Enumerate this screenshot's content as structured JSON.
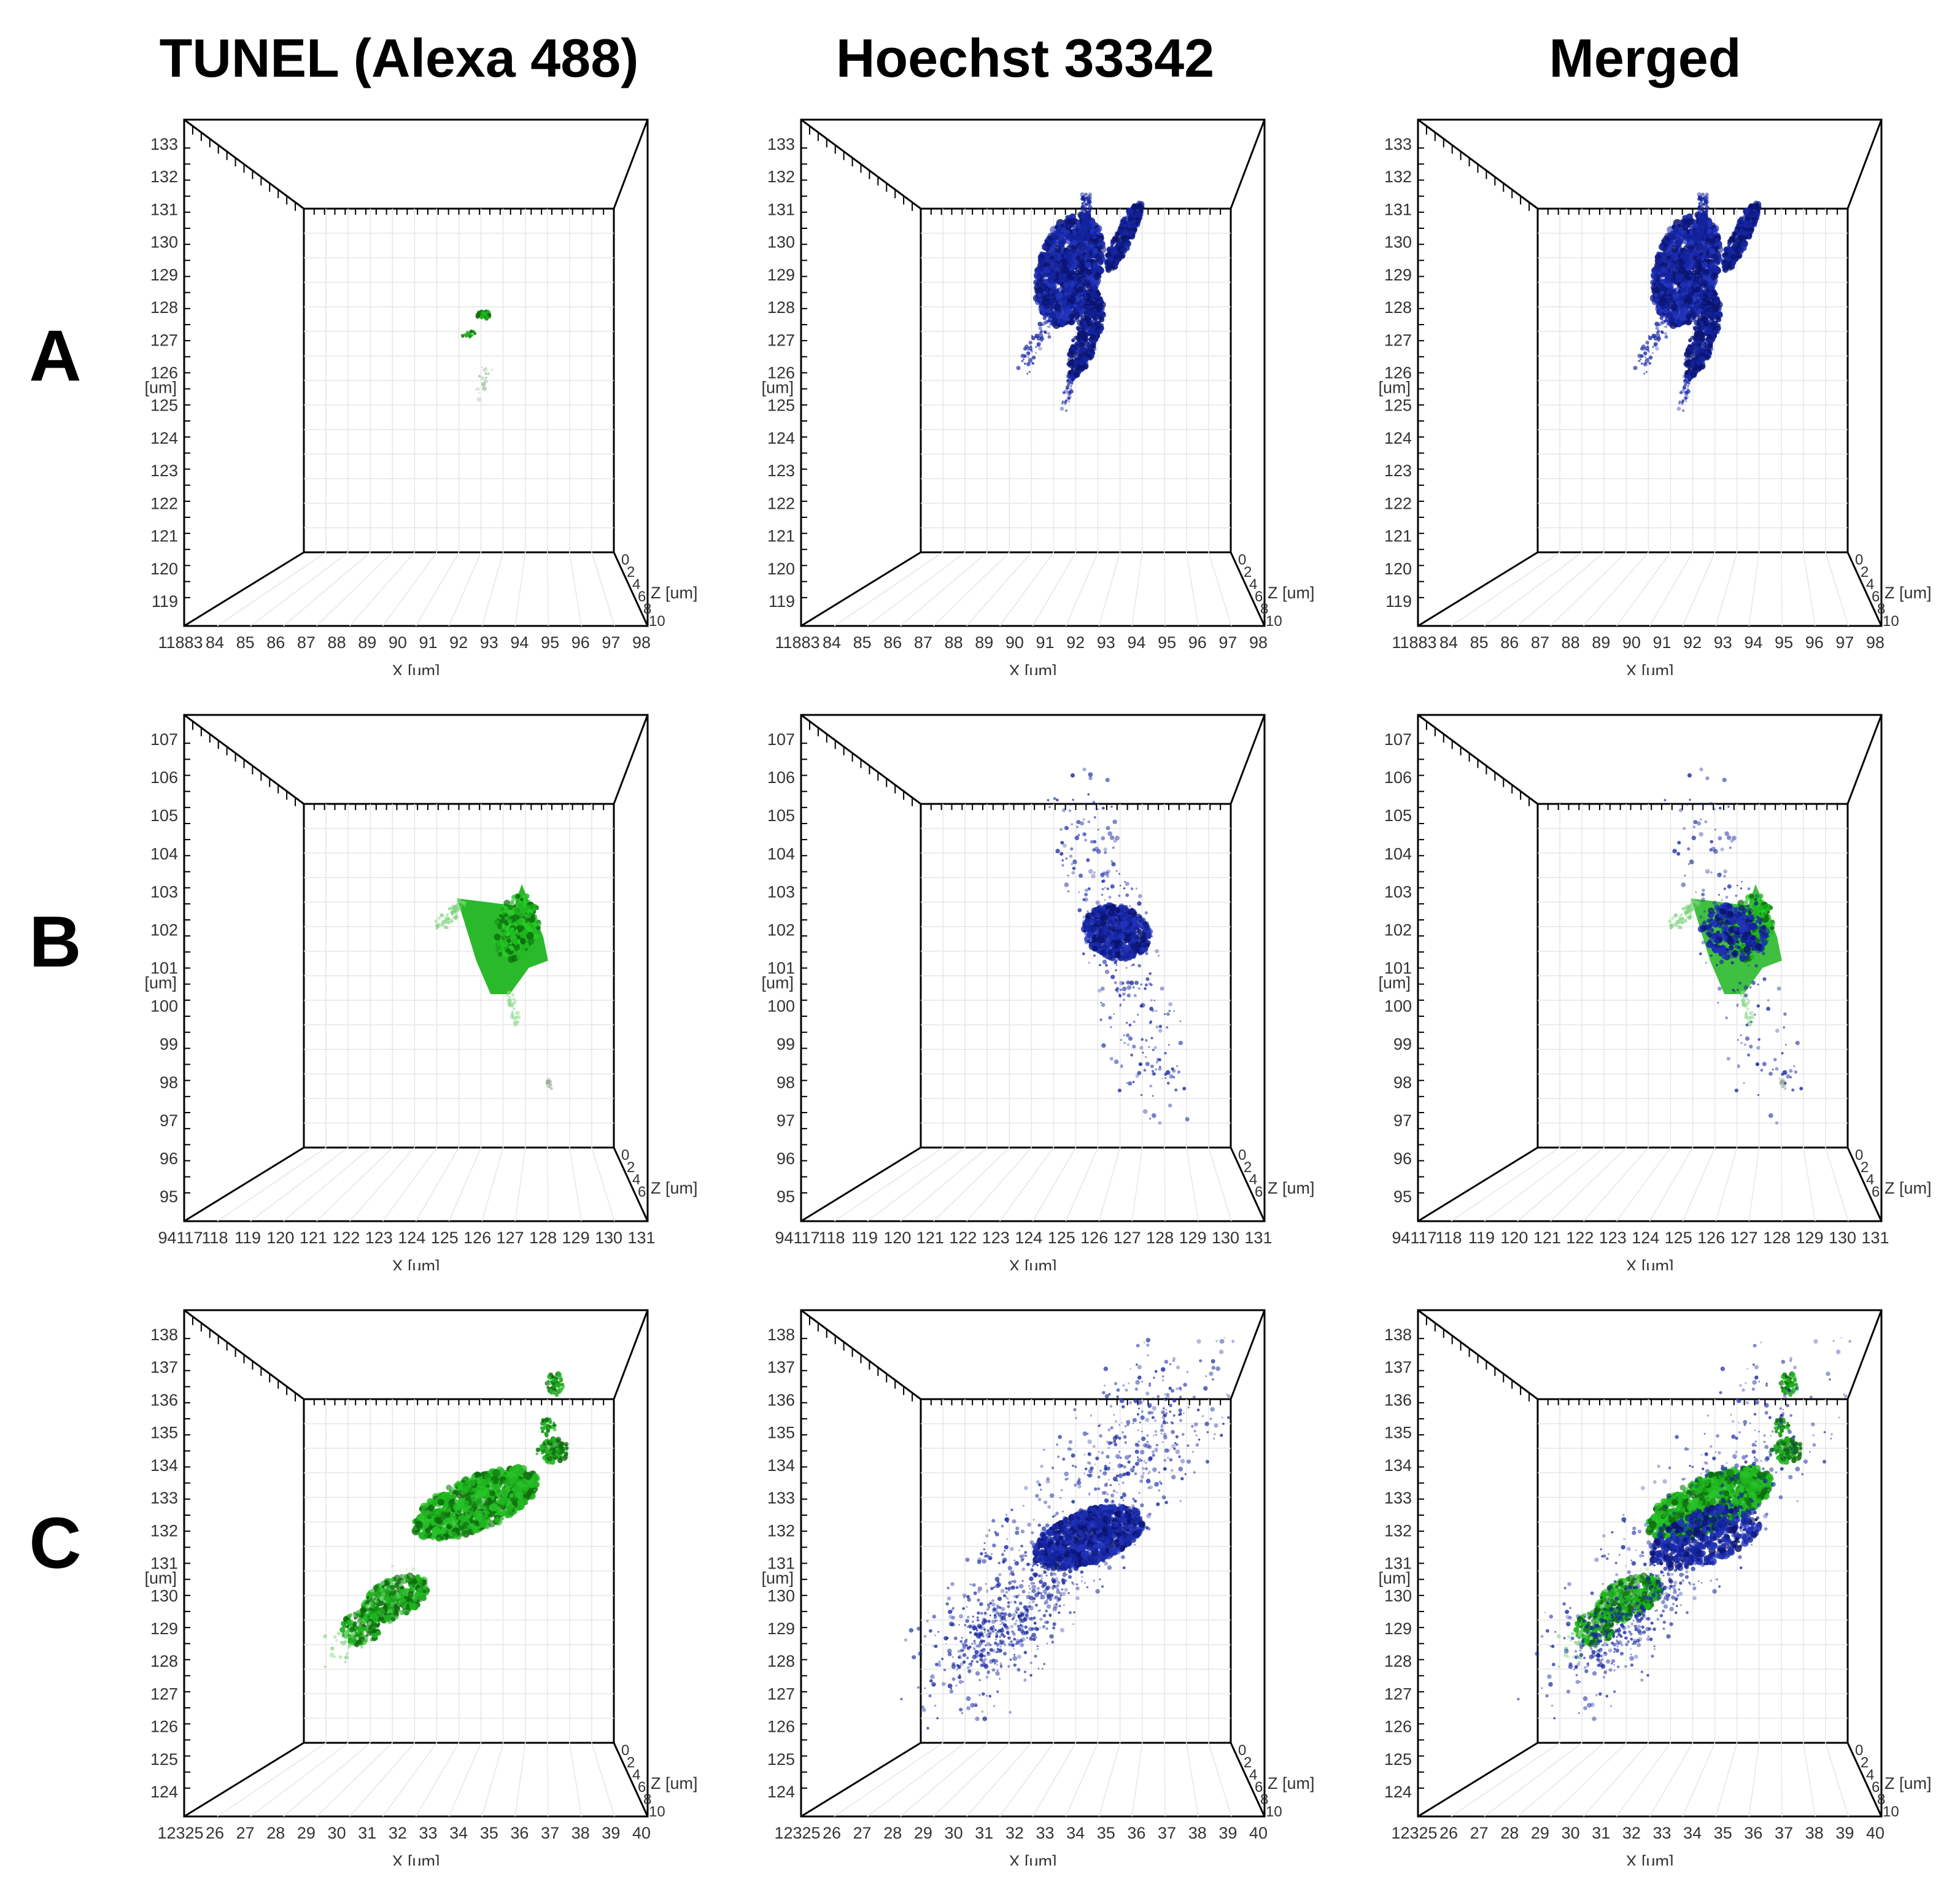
{
  "column_headers": [
    "TUNEL (Alexa 488)",
    "Hoechst 33342",
    "Merged"
  ],
  "row_labels": [
    "A",
    "B",
    "C"
  ],
  "axis_titles": {
    "x": "X [um]",
    "y": "Y [um]",
    "z": "Z [um]"
  },
  "colors": {
    "tunel_green": "#1fb51f",
    "tunel_dark": "#0e6e0e",
    "hoechst_blue": "#1424a0",
    "hoechst_dark": "#0a1470"
  },
  "icons": [
    "fluorescence-cell-render"
  ],
  "rows": [
    {
      "label": "A",
      "y_ticks": [
        "119",
        "120",
        "121",
        "122",
        "123",
        "124",
        "125",
        "126",
        "127",
        "128",
        "129",
        "130",
        "131",
        "132",
        "133"
      ],
      "x_ticks": [
        "84",
        "85",
        "86",
        "87",
        "88",
        "89",
        "90",
        "91",
        "92",
        "93",
        "94",
        "95",
        "96",
        "97",
        "98"
      ],
      "origin_label": "11883",
      "z_ticks": [
        "0",
        "2",
        "4",
        "6",
        "8",
        "10"
      ]
    },
    {
      "label": "B",
      "y_ticks": [
        "95",
        "96",
        "97",
        "98",
        "99",
        "100",
        "101",
        "102",
        "103",
        "104",
        "105",
        "106",
        "107"
      ],
      "x_ticks": [
        "118",
        "119",
        "120",
        "121",
        "122",
        "123",
        "124",
        "125",
        "126",
        "127",
        "128",
        "129",
        "130",
        "131"
      ],
      "origin_label": "94117",
      "z_ticks": [
        "0",
        "2",
        "4",
        "6"
      ]
    },
    {
      "label": "C",
      "y_ticks": [
        "124",
        "125",
        "126",
        "127",
        "128",
        "129",
        "130",
        "131",
        "132",
        "133",
        "134",
        "135",
        "136",
        "137",
        "138"
      ],
      "x_ticks": [
        "26",
        "27",
        "28",
        "29",
        "30",
        "31",
        "32",
        "33",
        "34",
        "35",
        "36",
        "37",
        "38",
        "39",
        "40"
      ],
      "origin_label": "12325",
      "z_ticks": [
        "0",
        "2",
        "4",
        "6",
        "8",
        "10"
      ]
    }
  ]
}
